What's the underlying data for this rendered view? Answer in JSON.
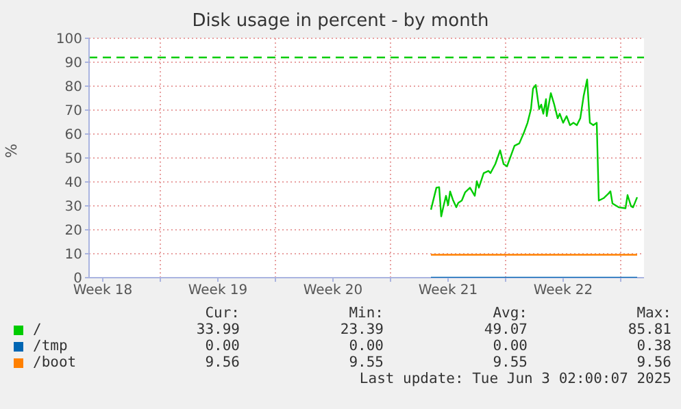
{
  "chart_data": {
    "type": "line",
    "title": "Disk usage in percent - by month",
    "ylabel": "%",
    "xlim": [
      "2025-04-30T16:00",
      "2025-06-03T10:00"
    ],
    "xticks": [
      {
        "value": "2025-05-01T12:00",
        "label": "Week 18"
      },
      {
        "value": "2025-05-05",
        "label": null
      },
      {
        "value": "2025-05-08T12:00",
        "label": "Week 19"
      },
      {
        "value": "2025-05-12",
        "label": null
      },
      {
        "value": "2025-05-15T12:00",
        "label": "Week 20"
      },
      {
        "value": "2025-05-19",
        "label": null
      },
      {
        "value": "2025-05-22T12:00",
        "label": "Week 21"
      },
      {
        "value": "2025-05-26",
        "label": null
      },
      {
        "value": "2025-05-29T12:00",
        "label": "Week 22"
      },
      {
        "value": "2025-06-02",
        "label": null
      }
    ],
    "ylim": [
      0,
      100
    ],
    "yticks": [
      0,
      10,
      20,
      30,
      40,
      50,
      60,
      70,
      80,
      90,
      100
    ],
    "grid": true,
    "legend": "bottom",
    "marker": "none",
    "line_style": "solid",
    "series": [
      {
        "name": "/",
        "color": "#00cc00",
        "x": [
          "2025-05-21T11:00",
          "2025-05-21T19:00",
          "2025-05-21T23:00",
          "2025-05-22T02:00",
          "2025-05-22T05:00",
          "2025-05-22T09:00",
          "2025-05-22T12:00",
          "2025-05-22T15:00",
          "2025-05-22T19:00",
          "2025-05-23T00:00",
          "2025-05-23T03:00",
          "2025-05-23T08:00",
          "2025-05-23T13:00",
          "2025-05-23T20:00",
          "2025-05-24T03:00",
          "2025-05-24T06:00",
          "2025-05-24T09:00",
          "2025-05-24T16:00",
          "2025-05-24T23:00",
          "2025-05-25T02:00",
          "2025-05-25T09:00",
          "2025-05-25T16:00",
          "2025-05-25T21:00",
          "2025-05-26T02:00",
          "2025-05-26T07:00",
          "2025-05-26T13:00",
          "2025-05-26T20:00",
          "2025-05-27T03:00",
          "2025-05-27T08:00",
          "2025-05-27T13:00",
          "2025-05-27T16:00",
          "2025-05-27T20:00",
          "2025-05-28T01:00",
          "2025-05-28T04:00",
          "2025-05-28T07:00",
          "2025-05-28T11:00",
          "2025-05-28T12:00",
          "2025-05-28T18:00",
          "2025-05-28T23:00",
          "2025-05-29T04:00",
          "2025-05-29T07:00",
          "2025-05-29T12:00",
          "2025-05-29T17:00",
          "2025-05-29T22:00",
          "2025-05-30T03:00",
          "2025-05-30T08:00",
          "2025-05-30T13:00",
          "2025-05-30T18:00",
          "2025-05-30T23:00",
          "2025-05-31T03:00",
          "2025-05-31T08:00",
          "2025-05-31T13:00",
          "2025-05-31T16:00",
          "2025-05-31T23:00",
          "2025-06-01T06:00",
          "2025-06-01T09:00",
          "2025-06-01T12:00",
          "2025-06-01T21:00",
          "2025-06-02T07:00",
          "2025-06-02T10:00",
          "2025-06-02T15:00",
          "2025-06-02T18:00",
          "2025-06-03T00:00"
        ],
        "values": [
          28.4,
          37.6,
          37.8,
          25.6,
          29.4,
          34.2,
          30.3,
          36,
          32.6,
          29.4,
          31.3,
          32.2,
          35.7,
          37.6,
          34.2,
          40.3,
          37.6,
          43.7,
          44.6,
          43.7,
          47.5,
          53.2,
          47.5,
          46.5,
          50.4,
          55.1,
          56.1,
          60.8,
          64.7,
          70.4,
          79,
          80.5,
          70.4,
          72.3,
          68.5,
          74.6,
          67.5,
          77.1,
          72.3,
          66.6,
          68.5,
          64.7,
          67.5,
          63.7,
          64.7,
          63.7,
          66.6,
          76.1,
          82.8,
          64.7,
          63.7,
          64.7,
          32.2,
          33.2,
          35.1,
          36.1,
          31,
          29.4,
          29,
          34.5,
          29.9,
          29.4,
          33.6
        ]
      },
      {
        "name": "/tmp",
        "color": "#0066b3",
        "x": [
          "2025-05-21T11:00",
          "2025-06-03T00:00"
        ],
        "values": [
          0,
          0
        ]
      },
      {
        "name": "/boot",
        "color": "#ff8000",
        "x": [
          "2025-05-21T11:00",
          "2025-06-03T00:00"
        ],
        "values": [
          9.56,
          9.56
        ]
      }
    ],
    "ref_lines": [
      {
        "axis": "y",
        "value": 92,
        "color": "#00cc00",
        "line_style": "dashed",
        "label": null
      }
    ],
    "annotations": [
      "Cur:",
      "Min:",
      "Avg:",
      "Max:",
      "33.99",
      "23.39",
      "49.07",
      "85.81",
      "0.00",
      "0.00",
      "0.00",
      "0.38",
      "9.56",
      "9.55",
      "9.55",
      "9.56",
      "Last update: Tue Jun  3 02:00:07 2025"
    ]
  }
}
